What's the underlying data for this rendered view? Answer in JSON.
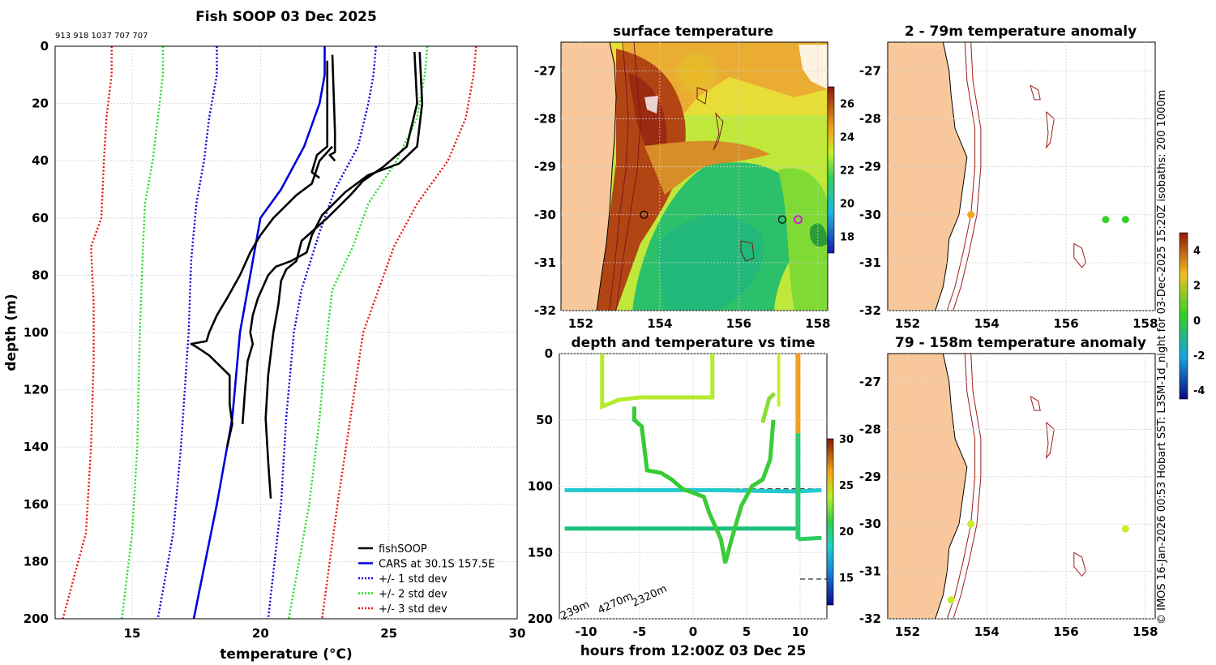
{
  "chart_data": [
    {
      "type": "line",
      "title": "Fish SOOP 03 Dec 2025",
      "subtitle": "913 918 1037 707 707",
      "xlabel": "temperature (°C)",
      "ylabel": "depth (m)",
      "xlim": [
        12,
        30
      ],
      "ylim": [
        0,
        200
      ],
      "xticks": [
        "15",
        "20",
        "25",
        "30"
      ],
      "yticks": [
        "0",
        "20",
        "40",
        "60",
        "80",
        "100",
        "120",
        "140",
        "160",
        "180",
        "200"
      ],
      "legend": [
        "fishSOOP",
        "CARS at 30.1S 157.5E",
        "+/- 1 std dev",
        "+/- 2 std dev",
        "+/- 3 std dev"
      ],
      "legend_colors": [
        "#000000",
        "#0000dd",
        "#0000dd",
        "#22dd22",
        "#ee1111"
      ],
      "cars_mean": [
        [
          22.5,
          0
        ],
        [
          22.5,
          10
        ],
        [
          22.3,
          20
        ],
        [
          21.7,
          35
        ],
        [
          20.8,
          50
        ],
        [
          20.0,
          60
        ],
        [
          19.6,
          80
        ],
        [
          19.2,
          100
        ],
        [
          18.9,
          130
        ],
        [
          18.3,
          160
        ],
        [
          17.4,
          200
        ]
      ],
      "std1_lo": [
        [
          18.3,
          0
        ],
        [
          18.3,
          10
        ],
        [
          18.0,
          25
        ],
        [
          17.8,
          40
        ],
        [
          17.5,
          55
        ],
        [
          17.3,
          75
        ],
        [
          17.2,
          100
        ],
        [
          16.9,
          140
        ],
        [
          16.6,
          170
        ],
        [
          16.0,
          200
        ]
      ],
      "std1_hi": [
        [
          24.5,
          0
        ],
        [
          24.4,
          10
        ],
        [
          24.2,
          20
        ],
        [
          23.8,
          35
        ],
        [
          22.9,
          50
        ],
        [
          22.3,
          65
        ],
        [
          21.6,
          85
        ],
        [
          21.3,
          100
        ],
        [
          21.0,
          130
        ],
        [
          20.8,
          160
        ],
        [
          20.3,
          200
        ]
      ],
      "std2_lo": [
        [
          16.2,
          0
        ],
        [
          16.2,
          10
        ],
        [
          16.0,
          25
        ],
        [
          15.8,
          40
        ],
        [
          15.5,
          55
        ],
        [
          15.4,
          75
        ],
        [
          15.3,
          100
        ],
        [
          15.2,
          140
        ],
        [
          15.0,
          170
        ],
        [
          14.6,
          200
        ]
      ],
      "std2_hi": [
        [
          26.5,
          0
        ],
        [
          26.4,
          10
        ],
        [
          26.1,
          25
        ],
        [
          25.3,
          40
        ],
        [
          24.2,
          55
        ],
        [
          23.6,
          70
        ],
        [
          22.8,
          85
        ],
        [
          22.6,
          100
        ],
        [
          22.3,
          130
        ],
        [
          21.9,
          160
        ],
        [
          21.1,
          200
        ]
      ],
      "std3_lo": [
        [
          14.2,
          0
        ],
        [
          14.2,
          10
        ],
        [
          14.0,
          25
        ],
        [
          13.9,
          40
        ],
        [
          13.8,
          60
        ],
        [
          13.4,
          70
        ],
        [
          13.5,
          90
        ],
        [
          13.5,
          110
        ],
        [
          13.4,
          140
        ],
        [
          13.2,
          170
        ],
        [
          12.3,
          200
        ]
      ],
      "std3_hi": [
        [
          28.4,
          0
        ],
        [
          28.3,
          10
        ],
        [
          28.0,
          25
        ],
        [
          27.3,
          40
        ],
        [
          26.1,
          55
        ],
        [
          25.2,
          70
        ],
        [
          24.6,
          85
        ],
        [
          24.0,
          100
        ],
        [
          23.5,
          130
        ],
        [
          23.0,
          160
        ],
        [
          22.4,
          200
        ]
      ],
      "fish_profiles": [
        [
          [
            22.8,
            3
          ],
          [
            22.9,
            30
          ],
          [
            22.9,
            37
          ],
          [
            22.7,
            38
          ],
          [
            22.9,
            40
          ]
        ],
        [
          [
            22.6,
            5
          ],
          [
            22.6,
            35
          ],
          [
            22.2,
            38
          ],
          [
            22.0,
            44
          ],
          [
            22.3,
            46
          ]
        ],
        [
          [
            26.0,
            2
          ],
          [
            26.1,
            20
          ],
          [
            25.7,
            35
          ],
          [
            24.8,
            42
          ],
          [
            24.0,
            47
          ],
          [
            23.5,
            52
          ],
          [
            22.6,
            60
          ],
          [
            21.6,
            68
          ],
          [
            21.4,
            75
          ],
          [
            21.0,
            78
          ],
          [
            20.8,
            82
          ],
          [
            20.7,
            90
          ],
          [
            20.5,
            100
          ],
          [
            20.3,
            115
          ],
          [
            20.2,
            130
          ],
          [
            20.3,
            145
          ],
          [
            20.4,
            158
          ]
        ],
        [
          [
            26.2,
            2
          ],
          [
            26.3,
            20
          ],
          [
            26.1,
            35
          ],
          [
            25.4,
            41
          ],
          [
            24.2,
            45
          ],
          [
            23.3,
            51
          ],
          [
            22.4,
            59
          ],
          [
            22.0,
            66
          ],
          [
            21.8,
            72
          ],
          [
            21.2,
            75
          ],
          [
            20.6,
            77
          ],
          [
            20.3,
            80
          ],
          [
            20.1,
            84
          ],
          [
            19.9,
            88
          ],
          [
            19.7,
            94
          ],
          [
            19.6,
            100
          ],
          [
            19.7,
            104
          ],
          [
            19.5,
            110
          ],
          [
            19.4,
            120
          ],
          [
            19.3,
            132
          ]
        ],
        [
          [
            22.8,
            35
          ],
          [
            22.3,
            40
          ],
          [
            22.0,
            48
          ],
          [
            21.4,
            52
          ],
          [
            20.5,
            60
          ],
          [
            20.0,
            66
          ],
          [
            19.6,
            72
          ],
          [
            19.2,
            80
          ],
          [
            18.7,
            88
          ],
          [
            18.3,
            94
          ],
          [
            18.0,
            100
          ],
          [
            17.9,
            103
          ],
          [
            17.3,
            104
          ],
          [
            17.5,
            105
          ],
          [
            18.0,
            108
          ],
          [
            18.8,
            115
          ],
          [
            18.8,
            125
          ],
          [
            18.9,
            132
          ],
          [
            18.8,
            136
          ],
          [
            18.7,
            140
          ]
        ]
      ]
    },
    {
      "type": "heatmap",
      "title": "surface temperature",
      "xticks": [
        "152",
        "154",
        "156",
        "158"
      ],
      "yticks": [
        "-27",
        "-28",
        "-29",
        "-30",
        "-31",
        "-32"
      ],
      "colorbar_ticks": [
        "18",
        "20",
        "22",
        "24",
        "26"
      ],
      "stations": [
        [
          153.6,
          -30.0
        ],
        [
          157.1,
          -30.1
        ],
        [
          157.5,
          -30.1
        ]
      ]
    },
    {
      "type": "line",
      "title": "depth and temperature vs time",
      "xlabel": "hours from 12:00Z 03 Dec 25",
      "xticks": [
        "-10",
        "-5",
        "0",
        "5",
        "10"
      ],
      "yticks": [
        "0",
        "50",
        "100",
        "150",
        "200"
      ],
      "colorbar_ticks": [
        "15",
        "20",
        "25",
        "30"
      ],
      "annotations": [
        "239m",
        "4270m",
        "2320m"
      ],
      "track_points": [
        [
          -8.5,
          0
        ],
        [
          -8.5,
          40
        ],
        [
          -7,
          35
        ],
        [
          -5,
          33
        ],
        [
          0,
          33
        ],
        [
          1.8,
          33
        ],
        [
          1.8,
          0
        ]
      ],
      "track_descent": [
        [
          -5.5,
          40
        ],
        [
          -4,
          90
        ],
        [
          -2,
          100
        ],
        [
          0,
          103
        ],
        [
          1.5,
          110
        ],
        [
          3,
          158
        ],
        [
          4.5,
          110
        ],
        [
          6,
          100
        ],
        [
          7,
          60
        ],
        [
          7.8,
          30
        ]
      ],
      "flat_lines": [
        [
          -12,
          102,
          12,
          102
        ],
        [
          -12,
          132,
          10,
          132
        ]
      ]
    },
    {
      "type": "heatmap",
      "title": "2 - 79m temperature anomaly",
      "xticks": [
        "152",
        "154",
        "156",
        "158"
      ],
      "yticks": [
        "-27",
        "-28",
        "-29",
        "-30",
        "-31",
        "-32"
      ],
      "points": [
        [
          153.6,
          -30.0,
          2.2
        ],
        [
          157.0,
          -30.1,
          0.3
        ],
        [
          157.5,
          -30.1,
          0.5
        ]
      ]
    },
    {
      "type": "heatmap",
      "title": "79 - 158m temperature anomaly",
      "xticks": [
        "152",
        "154",
        "156",
        "158"
      ],
      "yticks": [
        "-27",
        "-28",
        "-29",
        "-30",
        "-31",
        "-32"
      ],
      "colorbar_ticks": [
        "4",
        "2",
        "0",
        "-2",
        "-4"
      ],
      "points": [
        [
          153.6,
          -30.0,
          1.2
        ],
        [
          153.1,
          -31.6,
          1.3
        ],
        [
          157.5,
          -30.1,
          1.0
        ]
      ]
    }
  ],
  "side_text": "© IMOS 16-Jan-2026 00:53 Hobart SST: L3SM-1d_night for 03-Dec-2025 15:20Z isobaths: 200  1000m"
}
